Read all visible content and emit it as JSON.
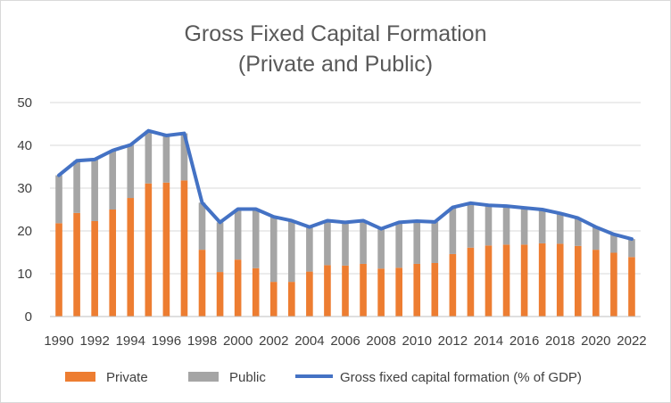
{
  "chart_data": {
    "type": "bar",
    "stacked": true,
    "title": "Gross Fixed Capital Formation",
    "subtitle": "(Private and Public)",
    "xlabel": "",
    "ylabel": "",
    "ylim": [
      0,
      50
    ],
    "yticks": [
      "0",
      "10",
      "20",
      "30",
      "40",
      "50"
    ],
    "grid": true,
    "legend_position": "bottom",
    "categories": [
      "1990",
      "1991",
      "1992",
      "1993",
      "1994",
      "1995",
      "1996",
      "1997",
      "1998",
      "1999",
      "2000",
      "2001",
      "2002",
      "2003",
      "2004",
      "2005",
      "2006",
      "2007",
      "2008",
      "2009",
      "2010",
      "2011",
      "2012",
      "2013",
      "2014",
      "2015",
      "2016",
      "2017",
      "2018",
      "2019",
      "2020",
      "2021",
      "2022"
    ],
    "xtick_labels": [
      "1990",
      "1992",
      "1994",
      "1996",
      "1998",
      "2000",
      "2002",
      "2004",
      "2006",
      "2008",
      "2010",
      "2012",
      "2014",
      "2016",
      "2018",
      "2020",
      "2022"
    ],
    "series": [
      {
        "name": "Private",
        "kind": "bar",
        "color": "#ED7D31",
        "values": [
          21.8,
          24.2,
          22.3,
          25.0,
          27.7,
          31.1,
          31.3,
          31.8,
          15.6,
          10.4,
          13.3,
          11.3,
          8.1,
          8.1,
          10.5,
          12.0,
          11.9,
          12.3,
          11.2,
          11.4,
          12.3,
          12.5,
          14.6,
          16.1,
          16.6,
          16.8,
          16.8,
          17.1,
          17.0,
          16.5,
          15.6,
          14.9,
          13.9
        ]
      },
      {
        "name": "Public",
        "kind": "bar",
        "color": "#A5A5A5",
        "values": [
          11.2,
          12.2,
          14.4,
          13.8,
          12.4,
          12.3,
          11.0,
          11.0,
          11.0,
          11.6,
          11.8,
          13.8,
          15.2,
          14.3,
          10.4,
          10.4,
          10.1,
          10.1,
          9.3,
          10.6,
          10.0,
          9.6,
          10.9,
          10.4,
          9.4,
          9.0,
          8.6,
          7.9,
          7.1,
          6.5,
          5.3,
          4.3,
          4.2
        ]
      },
      {
        "name": "Gross fixed capital formation (% of GDP)",
        "kind": "line",
        "color": "#4472C4",
        "values": [
          33.0,
          36.4,
          36.7,
          38.8,
          40.1,
          43.4,
          42.3,
          42.8,
          26.6,
          22.0,
          25.1,
          25.1,
          23.3,
          22.4,
          20.9,
          22.4,
          22.0,
          22.4,
          20.5,
          22.0,
          22.3,
          22.1,
          25.5,
          26.5,
          26.0,
          25.8,
          25.4,
          25.0,
          24.1,
          23.0,
          20.9,
          19.2,
          18.1
        ]
      }
    ]
  }
}
